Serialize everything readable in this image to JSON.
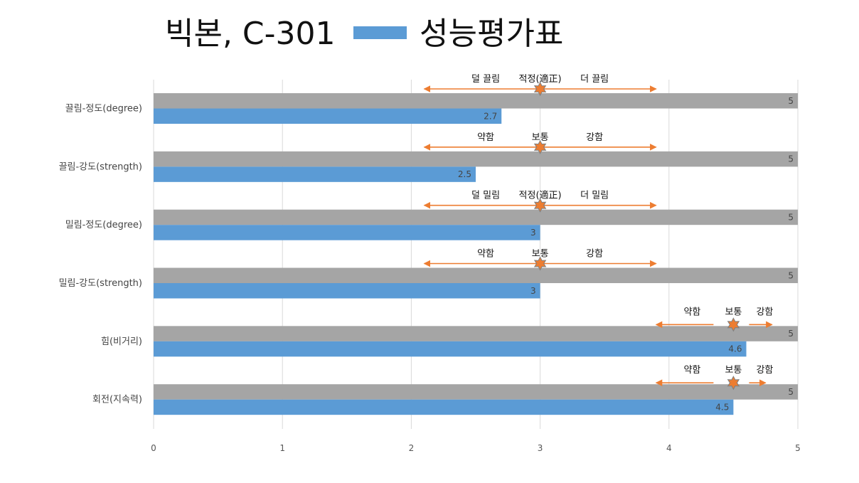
{
  "chart_data": {
    "type": "bar",
    "orientation": "horizontal",
    "title_left": "빅본, C-301",
    "title_right": "성능평가표",
    "categories": [
      "끌림-정도(degree)",
      "끌림-강도(strength)",
      "밀림-정도(degree)",
      "밀림-강도(strength)",
      "힘(비거리)",
      "회전(지속력)"
    ],
    "series": [
      {
        "values": [
          5,
          5,
          5,
          5,
          5,
          5
        ],
        "color": "#A5A5A5"
      },
      {
        "values": [
          2.7,
          2.5,
          3,
          3,
          4.6,
          4.5
        ],
        "color": "#5B9BD5"
      }
    ],
    "value_labels": [
      [
        "5",
        "5",
        "5",
        "5",
        "5",
        "5"
      ],
      [
        "2.7",
        "2.5",
        "3",
        "3",
        "4.6",
        "4.5"
      ]
    ],
    "xlim": [
      0,
      5
    ],
    "x_ticks": [
      "0",
      "1",
      "2",
      "3",
      "4",
      "5"
    ],
    "grid": "vertical",
    "legend": "title",
    "annotations": [
      {
        "left": "덜 끌림",
        "center": "적정(適正)",
        "right": "더 끌림",
        "marker": 3,
        "arrow_from": 2.1,
        "arrow_to": 3.9
      },
      {
        "left": "약함",
        "center": "보통",
        "right": "강함",
        "marker": 3,
        "arrow_from": 2.1,
        "arrow_to": 3.9
      },
      {
        "left": "덜 밀림",
        "center": "적정(適正)",
        "right": "더 밀림",
        "marker": 3,
        "arrow_from": 2.1,
        "arrow_to": 3.9
      },
      {
        "left": "약함",
        "center": "보통",
        "right": "강함",
        "marker": 3,
        "arrow_from": 2.1,
        "arrow_to": 3.9
      },
      {
        "left": "약함",
        "center": "보통",
        "right": "강함",
        "marker": 4.5,
        "arrow_from": 3.9,
        "arrow_to": 4.8
      },
      {
        "left": "약함",
        "center": "보통",
        "right": "강함",
        "marker": 4.5,
        "arrow_from": 3.9,
        "arrow_to": 4.75
      }
    ],
    "annotation_color": "#ED7D31"
  }
}
